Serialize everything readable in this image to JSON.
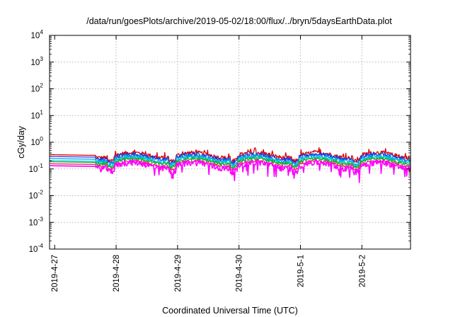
{
  "chart_data": {
    "type": "line",
    "title": "/data/run/goesPlots/archive/2019-05-02/18:00/flux/../bryn/5daysEarthData.plot",
    "xlabel": "Coordinated Universal Time (UTC)",
    "ylabel": "cGy/day",
    "y_scale": "log",
    "ylim": [
      0.0001,
      10000
    ],
    "y_ticks": [
      {
        "base": "10",
        "exp": "-4",
        "value": 0.0001
      },
      {
        "base": "10",
        "exp": "-3",
        "value": 0.001
      },
      {
        "base": "10",
        "exp": "-2",
        "value": 0.01
      },
      {
        "base": "10",
        "exp": "-1",
        "value": 0.1
      },
      {
        "base": "10",
        "exp": "0",
        "value": 1
      },
      {
        "base": "10",
        "exp": "1",
        "value": 10
      },
      {
        "base": "10",
        "exp": "2",
        "value": 100
      },
      {
        "base": "10",
        "exp": "3",
        "value": 1000
      },
      {
        "base": "10",
        "exp": "4",
        "value": 10000
      }
    ],
    "xlim": [
      "2019-04-26T22:00",
      "2019-05-02T19:00"
    ],
    "x_ticks": [
      {
        "label": "2019-4-27",
        "value": "2019-04-27T00:00"
      },
      {
        "label": "2019-4-28",
        "value": "2019-04-28T00:00"
      },
      {
        "label": "2019-4-29",
        "value": "2019-04-29T00:00"
      },
      {
        "label": "2019-4-30",
        "value": "2019-04-30T00:00"
      },
      {
        "label": "2019-5-1",
        "value": "2019-05-01T00:00"
      },
      {
        "label": "2019-5-2",
        "value": "2019-05-02T00:00"
      }
    ],
    "grid": true,
    "data_gap": [
      "2019-04-27T00:00",
      "2019-04-27T16:00"
    ],
    "series": [
      {
        "color": "#dd0000",
        "typical_value": 0.32,
        "start_value": 0.35,
        "noise": 0.18
      },
      {
        "color": "#2233dd",
        "typical_value": 0.28,
        "start_value": 0.3,
        "noise": 0.18
      },
      {
        "color": "#0099ee",
        "typical_value": 0.24,
        "start_value": 0.25,
        "noise": 0.18
      },
      {
        "color": "#00cccc",
        "typical_value": 0.21,
        "start_value": 0.21,
        "noise": 0.16
      },
      {
        "color": "#22aa22",
        "typical_value": 0.19,
        "start_value": 0.19,
        "noise": 0.14
      },
      {
        "color": "#ee2277",
        "typical_value": 0.155,
        "start_value": 0.16,
        "noise": 0.12
      },
      {
        "color": "#ff00ff",
        "typical_value": 0.13,
        "start_value": 0.135,
        "noise": 0.28
      }
    ]
  }
}
